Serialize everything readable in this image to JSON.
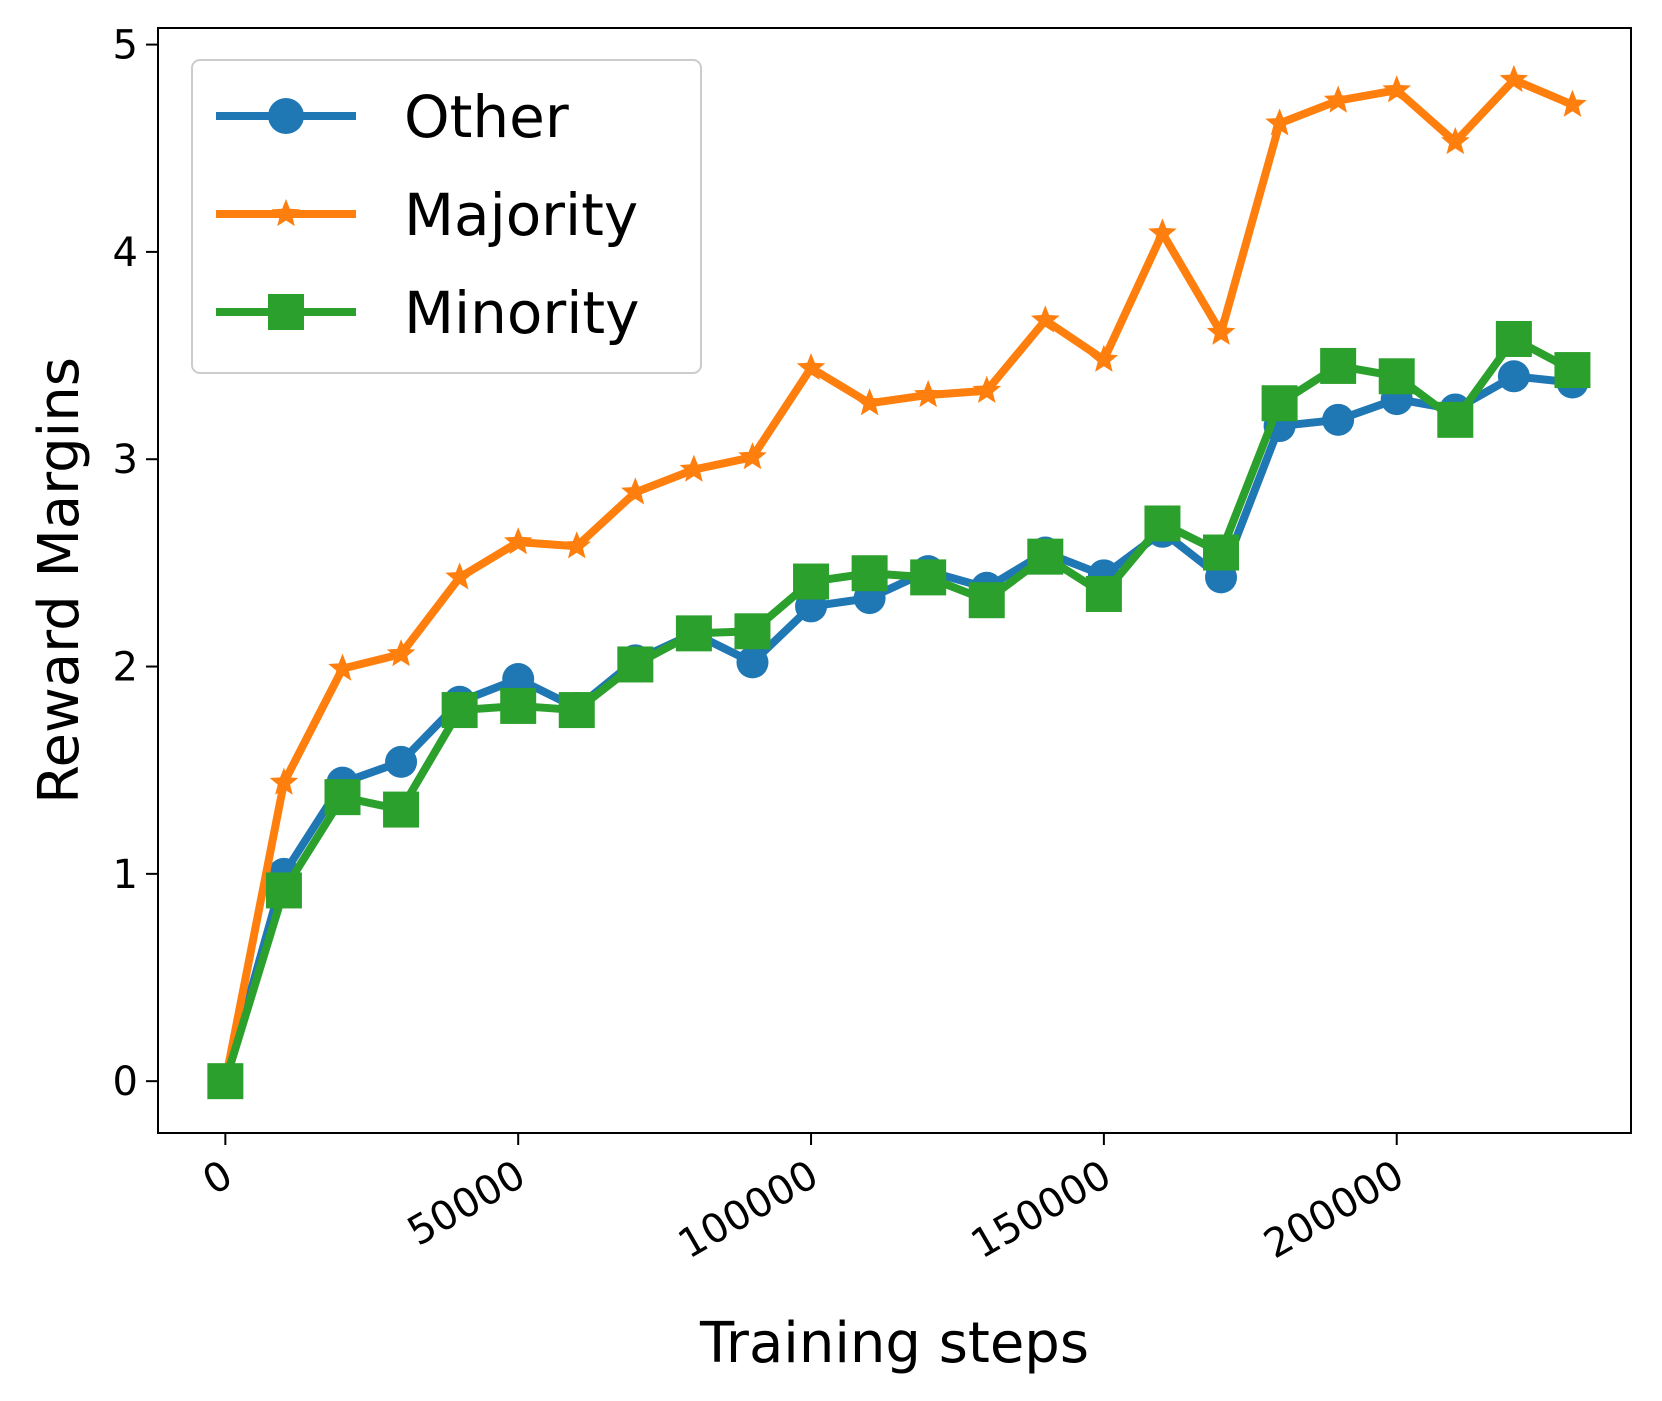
{
  "chart_data": {
    "type": "line",
    "title": "",
    "xlabel": "Training steps",
    "ylabel": "Reward Margins",
    "xlim": [
      -11500,
      240000
    ],
    "ylim": [
      -0.25,
      5.08
    ],
    "xticks": [
      0,
      50000,
      100000,
      150000,
      200000
    ],
    "xtick_labels": [
      "0",
      "50000",
      "100000",
      "150000",
      "200000"
    ],
    "yticks": [
      0,
      1,
      2,
      3,
      4,
      5
    ],
    "ytick_labels": [
      "0",
      "1",
      "2",
      "3",
      "4",
      "5"
    ],
    "grid": false,
    "legend_position": "top-left",
    "x": [
      0,
      10000,
      20000,
      30000,
      40000,
      50000,
      60000,
      70000,
      80000,
      90000,
      100000,
      110000,
      120000,
      130000,
      140000,
      150000,
      160000,
      170000,
      180000,
      190000,
      200000,
      210000,
      220000,
      230000
    ],
    "series": [
      {
        "name": "Other",
        "color": "#1f77b4",
        "marker": "circle",
        "values": [
          0.0,
          1.0,
          1.44,
          1.54,
          1.83,
          1.94,
          1.8,
          2.03,
          2.16,
          2.02,
          2.29,
          2.33,
          2.46,
          2.38,
          2.55,
          2.44,
          2.65,
          2.43,
          3.16,
          3.19,
          3.29,
          3.24,
          3.4,
          3.37
        ]
      },
      {
        "name": "Majority",
        "color": "#ff7f0e",
        "marker": "star",
        "values": [
          0.0,
          1.44,
          1.99,
          2.06,
          2.43,
          2.6,
          2.58,
          2.84,
          2.95,
          3.01,
          3.44,
          3.27,
          3.31,
          3.33,
          3.67,
          3.48,
          4.09,
          3.61,
          4.62,
          4.73,
          4.78,
          4.53,
          4.83,
          4.71
        ]
      },
      {
        "name": "Minority",
        "color": "#2ca02c",
        "marker": "square",
        "values": [
          0.0,
          0.92,
          1.37,
          1.31,
          1.79,
          1.81,
          1.79,
          2.01,
          2.16,
          2.17,
          2.41,
          2.45,
          2.43,
          2.32,
          2.53,
          2.35,
          2.69,
          2.55,
          3.27,
          3.45,
          3.4,
          3.19,
          3.58,
          3.43
        ]
      }
    ]
  }
}
